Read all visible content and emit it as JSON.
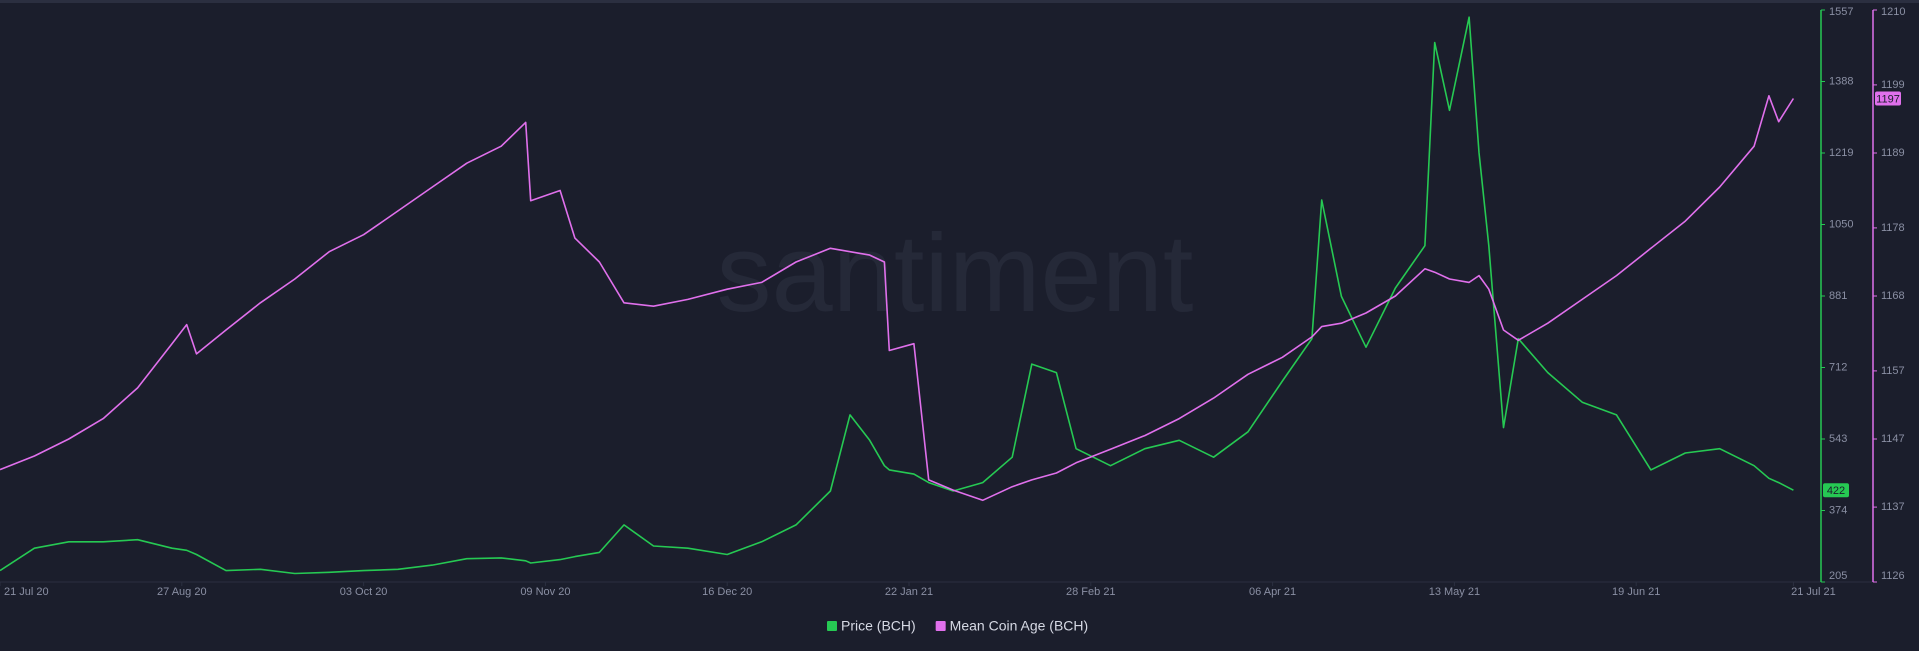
{
  "chart_data": {
    "type": "line",
    "watermark": "santiment",
    "x": [
      "2020-07-21",
      "2020-07-28",
      "2020-08-04",
      "2020-08-11",
      "2020-08-18",
      "2020-08-25",
      "2020-08-28",
      "2020-08-30",
      "2020-09-05",
      "2020-09-12",
      "2020-09-19",
      "2020-09-26",
      "2020-10-03",
      "2020-10-10",
      "2020-10-17",
      "2020-10-24",
      "2020-10-31",
      "2020-11-05",
      "2020-11-06",
      "2020-11-12",
      "2020-11-15",
      "2020-11-20",
      "2020-11-25",
      "2020-12-01",
      "2020-12-08",
      "2020-12-16",
      "2020-12-23",
      "2020-12-30",
      "2021-01-06",
      "2021-01-10",
      "2021-01-14",
      "2021-01-17",
      "2021-01-18",
      "2021-01-23",
      "2021-01-26",
      "2021-01-31",
      "2021-02-06",
      "2021-02-12",
      "2021-02-16",
      "2021-02-21",
      "2021-02-25",
      "2021-03-04",
      "2021-03-11",
      "2021-03-18",
      "2021-03-25",
      "2021-04-01",
      "2021-04-08",
      "2021-04-14",
      "2021-04-16",
      "2021-04-20",
      "2021-04-25",
      "2021-05-01",
      "2021-05-07",
      "2021-05-09",
      "2021-05-12",
      "2021-05-16",
      "2021-05-18",
      "2021-05-20",
      "2021-05-23",
      "2021-05-26",
      "2021-06-01",
      "2021-06-08",
      "2021-06-15",
      "2021-06-22",
      "2021-06-29",
      "2021-07-06",
      "2021-07-13",
      "2021-07-16",
      "2021-07-18",
      "2021-07-21"
    ],
    "xlim": [
      "2020-07-21",
      "2021-07-26"
    ],
    "xticks": [
      {
        "value": "2020-07-21",
        "label": "21 Jul 20"
      },
      {
        "value": "2020-08-27",
        "label": "27 Aug 20"
      },
      {
        "value": "2020-10-03",
        "label": "03 Oct 20"
      },
      {
        "value": "2020-11-09",
        "label": "09 Nov 20"
      },
      {
        "value": "2020-12-16",
        "label": "16 Dec 20"
      },
      {
        "value": "2021-01-22",
        "label": "22 Jan 21"
      },
      {
        "value": "2021-02-28",
        "label": "28 Feb 21"
      },
      {
        "value": "2021-04-06",
        "label": "06 Apr 21"
      },
      {
        "value": "2021-05-13",
        "label": "13 May 21"
      },
      {
        "value": "2021-06-19",
        "label": "19 Jun 21"
      },
      {
        "value": "2021-07-21",
        "label": "21 Jul 21"
      }
    ],
    "ylim": [
      205,
      1557
    ],
    "yticks": [
      205,
      374,
      543,
      712,
      881,
      1050,
      1219,
      1388,
      1557
    ],
    "y2lim": [
      1126,
      1210
    ],
    "y2ticks": [
      1126,
      1137,
      1147,
      1157,
      1168,
      1178,
      1189,
      1199,
      1210
    ],
    "series": [
      {
        "name": "Price (BCH)",
        "color": "#26c953",
        "current_value": 422,
        "values": [
          232,
          285,
          300,
          300,
          305,
          285,
          280,
          270,
          232,
          235,
          225,
          228,
          232,
          235,
          245,
          260,
          262,
          255,
          250,
          258,
          265,
          275,
          340,
          290,
          285,
          270,
          300,
          340,
          420,
          600,
          540,
          480,
          470,
          460,
          440,
          420,
          440,
          500,
          720,
          700,
          520,
          480,
          520,
          540,
          500,
          560,
          680,
          780,
          1108,
          880,
          760,
          900,
          1000,
          1480,
          1320,
          1540,
          1220,
          1000,
          570,
          780,
          700,
          630,
          600,
          470,
          510,
          520,
          480,
          450,
          440,
          422
        ]
      },
      {
        "name": "Mean Coin Age (BCH)",
        "color": "#e070ec",
        "axis": "y2",
        "current_value": 1197,
        "values": [
          1142.5,
          1144.5,
          1147,
          1150,
          1154.5,
          1161,
          1163.8,
          1159.5,
          1163,
          1167,
          1170.5,
          1174.5,
          1177,
          1180.5,
          1184,
          1187.5,
          1190,
          1193.5,
          1182,
          1183.5,
          1176.5,
          1173,
          1167,
          1166.5,
          1167.5,
          1169,
          1170,
          1173,
          1175,
          1174.5,
          1174,
          1173,
          1160,
          1161,
          1141,
          1139.5,
          1138,
          1140,
          1141,
          1142,
          1143.5,
          1145.5,
          1147.5,
          1150,
          1153,
          1156.5,
          1159,
          1162,
          1163.5,
          1164,
          1165.5,
          1168,
          1172,
          1171.5,
          1170.5,
          1170,
          1171,
          1169,
          1163,
          1161.5,
          1164,
          1167.5,
          1171,
          1175,
          1179,
          1184,
          1190,
          1197.4,
          1193.6,
          1197
        ]
      }
    ]
  }
}
